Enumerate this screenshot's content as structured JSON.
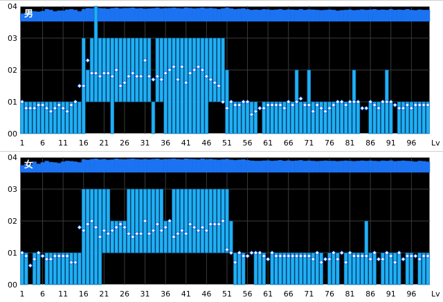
{
  "colors": {
    "background": "#000000",
    "frame": "#ffffff",
    "grid": "#3b3b3b",
    "bar_fill": "#1fb0f5",
    "bar_stroke": "#0a5d9b",
    "top_strip": "#1b73f2",
    "marker_fill": "#ffffff",
    "marker_stroke": "#1b73f2",
    "text": "#000000",
    "panel_label": "#ffffff"
  },
  "chart_data": [
    {
      "type": "bar",
      "title": "男",
      "xlabel": "Lv",
      "ylabel": "",
      "xlim": [
        1,
        100
      ],
      "ylim": [
        0,
        0.4
      ],
      "grid": true,
      "x_ticks": [
        "1",
        "6",
        "11",
        "16",
        "21",
        "26",
        "31",
        "36",
        "41",
        "46",
        "51",
        "56",
        "61",
        "66",
        "71",
        "76",
        "81",
        "86",
        "91",
        "96",
        "Lv"
      ],
      "y_ticks": [
        "00",
        "01",
        "02",
        "03",
        "04"
      ],
      "series": [
        {
          "values": [
            0.1,
            0.1,
            0.1,
            0.1,
            0.1,
            0.1,
            0.1,
            0.1,
            0.1,
            0.1,
            0.1,
            0.1,
            0.1,
            0.1,
            0.1,
            0.3,
            0.2,
            0.3,
            0.4,
            0.3,
            0.3,
            0.3,
            0.3,
            0.3,
            0.3,
            0.3,
            0.3,
            0.3,
            0.3,
            0.3,
            0.3,
            0.3,
            0.1,
            0.3,
            0.3,
            0.3,
            0.3,
            0.3,
            0.3,
            0.3,
            0.3,
            0.3,
            0.3,
            0.3,
            0.3,
            0.3,
            0.3,
            0.3,
            0.3,
            0.3,
            0.2,
            0.1,
            0.1,
            0.1,
            0.1,
            0.1,
            0.1,
            0.1,
            0.0,
            0.1,
            0.1,
            0.1,
            0.1,
            0.1,
            0.1,
            0.1,
            0.1,
            0.2,
            0.1,
            0.1,
            0.2,
            0.1,
            0.1,
            0.1,
            0.1,
            0.1,
            0.1,
            0.1,
            0.1,
            0.1,
            0.1,
            0.2,
            0.1,
            0.0,
            0.0,
            0.1,
            0.1,
            0.1,
            0.1,
            0.2,
            0.1,
            0.0,
            0.1,
            0.1,
            0.1,
            0.1,
            0.1,
            0.1,
            0.1,
            0.1
          ]
        },
        {
          "values": [
            0.0,
            0.0,
            0.0,
            0.0,
            0.0,
            0.0,
            0.0,
            0.0,
            0.0,
            0.0,
            0.0,
            0.0,
            0.0,
            0.0,
            0.0,
            0.0,
            0.1,
            0.1,
            0.1,
            0.1,
            0.1,
            0.1,
            0.0,
            0.1,
            0.1,
            0.1,
            0.1,
            0.1,
            0.1,
            0.1,
            0.1,
            0.1,
            0.0,
            0.1,
            0.1,
            0.0,
            0.0,
            0.0,
            0.0,
            0.0,
            0.0,
            0.0,
            0.0,
            0.0,
            0.0,
            0.0,
            0.1,
            0.1,
            0.1,
            0.1,
            0.0,
            0.0,
            0.0,
            0.0,
            0.0,
            0.0,
            0.0,
            0.0,
            0.0,
            0.0,
            0.0,
            0.0,
            0.0,
            0.0,
            0.0,
            0.0,
            0.0,
            0.0,
            0.0,
            0.0,
            0.0,
            0.0,
            0.0,
            0.0,
            0.0,
            0.0,
            0.0,
            0.0,
            0.0,
            0.0,
            0.0,
            0.0,
            0.0,
            0.0,
            0.0,
            0.0,
            0.0,
            0.0,
            0.0,
            0.0,
            0.0,
            0.0,
            0.0,
            0.0,
            0.0,
            0.0,
            0.0,
            0.0,
            0.0,
            0.0
          ]
        },
        {
          "values": [
            0.1,
            0.08,
            0.08,
            0.08,
            0.09,
            0.09,
            0.08,
            0.07,
            0.08,
            0.09,
            0.08,
            0.07,
            0.09,
            0.1,
            0.15,
            0.15,
            0.23,
            0.19,
            0.19,
            0.18,
            0.19,
            0.19,
            0.18,
            0.2,
            0.15,
            0.16,
            0.18,
            0.19,
            0.18,
            0.18,
            0.23,
            0.18,
            0.17,
            0.18,
            0.17,
            0.19,
            0.2,
            0.21,
            0.17,
            0.21,
            0.16,
            0.19,
            0.2,
            0.21,
            0.2,
            0.18,
            0.17,
            0.16,
            0.15,
            0.1,
            0.08,
            0.1,
            0.09,
            0.09,
            0.1,
            0.1,
            0.06,
            0.07,
            0.08,
            0.08,
            0.09,
            0.09,
            0.09,
            0.09,
            0.08,
            0.1,
            0.09,
            0.1,
            0.11,
            0.09,
            0.09,
            0.07,
            0.09,
            0.08,
            0.07,
            0.08,
            0.09,
            0.1,
            0.1,
            0.09,
            0.1,
            0.1,
            0.1,
            0.08,
            0.08,
            0.1,
            0.09,
            0.08,
            0.1,
            0.1,
            0.1,
            0.09,
            0.08,
            0.08,
            0.09,
            0.08,
            0.09,
            0.09,
            0.09,
            0.09
          ]
        }
      ],
      "top_strip": [
        0.55,
        0.6,
        0.7,
        0.7,
        0.68,
        0.72,
        0.85,
        0.8,
        0.7,
        0.75,
        0.75,
        0.82,
        0.85,
        0.8,
        0.7,
        0.85,
        0.92,
        0.9,
        0.95,
        0.92,
        0.9,
        0.88,
        0.92,
        0.95,
        0.9,
        0.92,
        0.93,
        0.95,
        0.9,
        0.92,
        0.88,
        0.9,
        0.92,
        0.95,
        0.9,
        0.92,
        0.93,
        0.95,
        0.92,
        0.9,
        0.95,
        0.93,
        0.9,
        0.92,
        0.95,
        0.9,
        0.93,
        0.9,
        0.85,
        0.9,
        0.95,
        0.9,
        0.85,
        0.88,
        0.9,
        0.85,
        0.8,
        0.82,
        0.8,
        0.85,
        0.83,
        0.8,
        0.82,
        0.85,
        0.8,
        0.83,
        0.82,
        0.8,
        0.85,
        0.8,
        0.83,
        0.82,
        0.8,
        0.78,
        0.8,
        0.82,
        0.8,
        0.75,
        0.78,
        0.8,
        0.82,
        0.78,
        0.8,
        0.83,
        0.8,
        0.82,
        0.85,
        0.8,
        0.82,
        0.8,
        0.85,
        0.8,
        0.82,
        0.8,
        0.85,
        0.8,
        0.78,
        0.82,
        0.8,
        0.8
      ]
    },
    {
      "type": "bar",
      "title": "女",
      "xlabel": "Lv",
      "ylabel": "",
      "xlim": [
        1,
        100
      ],
      "ylim": [
        0,
        0.4
      ],
      "grid": true,
      "x_ticks": [
        "1",
        "6",
        "11",
        "16",
        "21",
        "26",
        "31",
        "36",
        "41",
        "46",
        "51",
        "56",
        "61",
        "66",
        "71",
        "76",
        "81",
        "86",
        "91",
        "96",
        "Lv"
      ],
      "y_ticks": [
        "00",
        "01",
        "02",
        "03",
        "04"
      ],
      "series": [
        {
          "values": [
            0.1,
            0.1,
            0.0,
            0.1,
            0.1,
            0.0,
            0.1,
            0.1,
            0.1,
            0.1,
            0.1,
            0.1,
            0.1,
            0.1,
            0.1,
            0.3,
            0.3,
            0.3,
            0.3,
            0.3,
            0.3,
            0.3,
            0.2,
            0.2,
            0.2,
            0.2,
            0.3,
            0.3,
            0.3,
            0.3,
            0.3,
            0.3,
            0.3,
            0.3,
            0.3,
            0.2,
            0.2,
            0.3,
            0.3,
            0.3,
            0.3,
            0.3,
            0.3,
            0.3,
            0.3,
            0.3,
            0.3,
            0.3,
            0.3,
            0.3,
            0.3,
            0.2,
            0.1,
            0.1,
            0.1,
            0.0,
            0.0,
            0.1,
            0.1,
            0.1,
            0.0,
            0.1,
            0.1,
            0.1,
            0.1,
            0.1,
            0.1,
            0.1,
            0.1,
            0.1,
            0.1,
            0.1,
            0.1,
            0.1,
            0.0,
            0.1,
            0.1,
            0.1,
            0.0,
            0.1,
            0.1,
            0.1,
            0.1,
            0.1,
            0.2,
            0.1,
            0.1,
            0.0,
            0.1,
            0.1,
            0.1,
            0.1,
            0.1,
            0.0,
            0.1,
            0.1,
            0.0,
            0.1,
            0.1,
            0.1
          ]
        },
        {
          "values": [
            0.0,
            0.0,
            0.0,
            0.0,
            0.0,
            0.0,
            0.0,
            0.0,
            0.0,
            0.0,
            0.0,
            0.0,
            0.0,
            0.0,
            0.0,
            0.0,
            0.0,
            0.0,
            0.0,
            0.0,
            0.1,
            0.1,
            0.1,
            0.1,
            0.1,
            0.1,
            0.1,
            0.1,
            0.1,
            0.1,
            0.1,
            0.1,
            0.1,
            0.1,
            0.1,
            0.1,
            0.1,
            0.1,
            0.1,
            0.1,
            0.1,
            0.1,
            0.1,
            0.1,
            0.1,
            0.1,
            0.1,
            0.1,
            0.1,
            0.1,
            0.1,
            0.1,
            0.0,
            0.0,
            0.0,
            0.0,
            0.0,
            0.0,
            0.0,
            0.0,
            0.0,
            0.0,
            0.0,
            0.0,
            0.0,
            0.0,
            0.0,
            0.0,
            0.0,
            0.0,
            0.0,
            0.0,
            0.0,
            0.0,
            0.0,
            0.0,
            0.0,
            0.0,
            0.0,
            0.0,
            0.0,
            0.0,
            0.0,
            0.0,
            0.0,
            0.0,
            0.0,
            0.0,
            0.0,
            0.0,
            0.0,
            0.0,
            0.0,
            0.0,
            0.0,
            0.0,
            0.0,
            0.0,
            0.0,
            0.0
          ]
        },
        {
          "values": [
            0.1,
            0.09,
            0.06,
            0.08,
            0.1,
            0.09,
            0.08,
            0.08,
            0.09,
            0.09,
            0.09,
            0.09,
            0.07,
            0.07,
            0.18,
            0.17,
            0.19,
            0.2,
            0.18,
            0.15,
            0.17,
            0.16,
            0.17,
            0.18,
            0.19,
            0.18,
            0.16,
            0.15,
            0.16,
            0.16,
            0.2,
            0.16,
            0.17,
            0.19,
            0.17,
            0.18,
            0.2,
            0.15,
            0.16,
            0.17,
            0.16,
            0.19,
            0.18,
            0.17,
            0.18,
            0.17,
            0.19,
            0.19,
            0.19,
            0.2,
            0.11,
            0.1,
            0.07,
            0.1,
            0.09,
            0.09,
            0.1,
            0.1,
            0.1,
            0.09,
            0.08,
            0.1,
            0.09,
            0.09,
            0.09,
            0.09,
            0.09,
            0.09,
            0.09,
            0.09,
            0.09,
            0.08,
            0.1,
            0.07,
            0.08,
            0.08,
            0.1,
            0.08,
            0.1,
            0.07,
            0.1,
            0.09,
            0.09,
            0.09,
            0.09,
            0.08,
            0.1,
            0.08,
            0.08,
            0.1,
            0.09,
            0.07,
            0.1,
            0.08,
            0.09,
            0.09,
            0.09,
            0.08,
            0.09,
            0.09
          ]
        }
      ],
      "top_strip": [
        0.5,
        0.6,
        0.55,
        0.75,
        0.6,
        0.7,
        0.8,
        0.72,
        0.7,
        0.65,
        0.75,
        0.8,
        0.78,
        0.75,
        0.7,
        0.9,
        0.88,
        0.92,
        0.95,
        0.9,
        0.92,
        0.88,
        0.9,
        0.95,
        0.92,
        0.9,
        0.93,
        0.95,
        0.92,
        0.9,
        0.92,
        0.9,
        0.93,
        0.95,
        0.9,
        0.92,
        0.93,
        0.95,
        0.92,
        0.9,
        0.95,
        0.93,
        0.92,
        0.9,
        0.95,
        0.9,
        0.93,
        0.9,
        0.88,
        0.9,
        0.92,
        0.88,
        0.85,
        0.88,
        0.9,
        0.85,
        0.82,
        0.8,
        0.8,
        0.82,
        0.83,
        0.8,
        0.82,
        0.85,
        0.8,
        0.83,
        0.8,
        0.82,
        0.85,
        0.8,
        0.82,
        0.8,
        0.78,
        0.8,
        0.82,
        0.8,
        0.8,
        0.78,
        0.8,
        0.82,
        0.8,
        0.78,
        0.8,
        0.82,
        0.8,
        0.82,
        0.8,
        0.78,
        0.82,
        0.8,
        0.83,
        0.78,
        0.8,
        0.82,
        0.8,
        0.78,
        0.75,
        0.8,
        0.78,
        0.75
      ]
    }
  ]
}
